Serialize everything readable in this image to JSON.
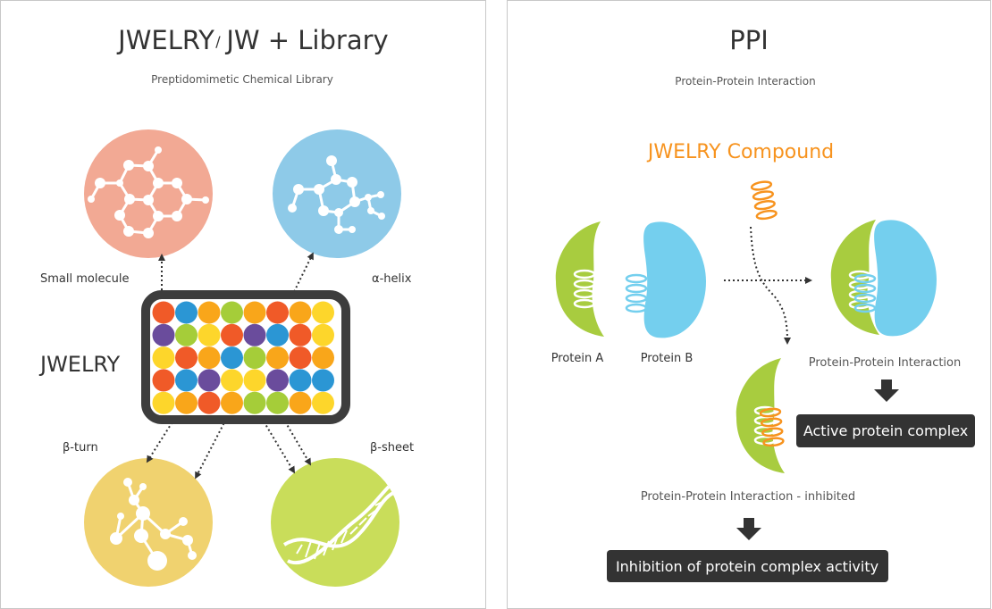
{
  "left_panel": {
    "title_left": "JWELRY",
    "title_sep": "/",
    "title_right": "JW + Library",
    "subtitle": "Preptidomimetic Chemical Library",
    "center_label": "JWELRY",
    "labels": {
      "small_molecule": "Small molecule",
      "alpha_helix": "α-helix",
      "beta_turn": "β-turn",
      "beta_sheet": "β-sheet"
    },
    "grid_colors": {
      "R": "#f05a28",
      "B": "#2b96d4",
      "O": "#f9a61a",
      "G": "#a5cd39",
      "P": "#6a4c9c",
      "Y": "#fdd62b"
    },
    "grid_rows": [
      "RBOGOROY",
      "PGYRPBRY",
      "YROBGORO",
      "RBPYYPBB",
      "YOROGGOY"
    ],
    "circle_colors": {
      "small_molecule": "#f2a994",
      "alpha_helix": "#8ecae8",
      "beta_turn": "#f0d26f",
      "beta_sheet": "#c9dd5a"
    }
  },
  "right_panel": {
    "title": "PPI",
    "subtitle": "Protein-Protein Interaction",
    "compound_label": "JWELRY Compound",
    "protein_a": "Protein A",
    "protein_b": "Protein B",
    "interaction_label": "Protein-Protein Interaction",
    "inhibited_label": "Protein-Protein Interaction - inhibited",
    "active_box": "Active protein complex",
    "inhibition_box": "Inhibition of protein complex activity",
    "colors": {
      "accent": "#f7931e",
      "protein_a": "#a8cc3f",
      "protein_b": "#74cfee",
      "box": "#333333"
    }
  }
}
